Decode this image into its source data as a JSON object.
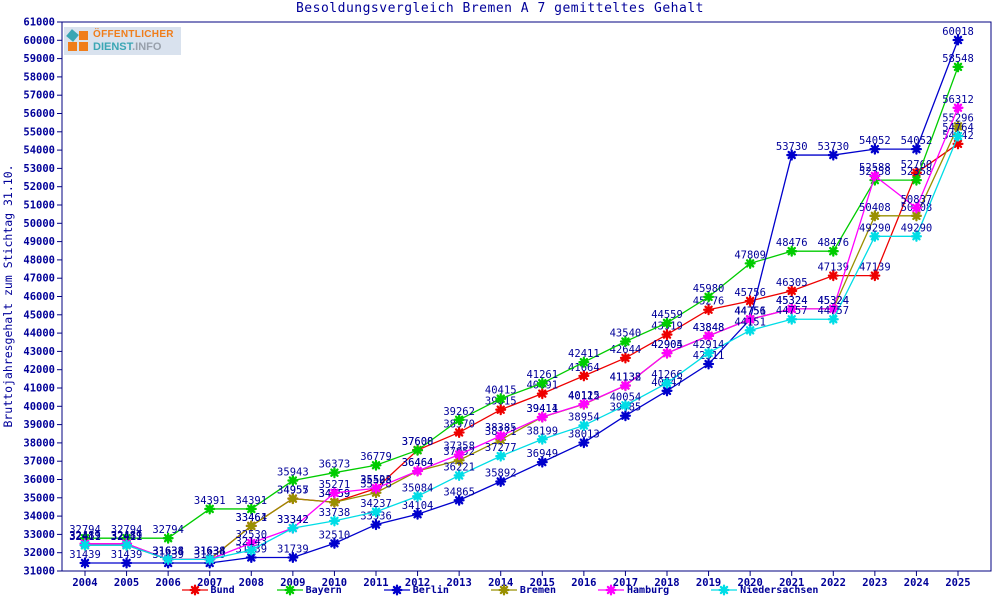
{
  "page": {
    "logo": {
      "line1": "ÖFFENTLICHER",
      "line2a": "DIENST",
      "line2b": ".INFO"
    }
  },
  "colors": {
    "axis": "#000080",
    "label_text": "#000099",
    "logo_orange": "#f07d1a",
    "logo_teal": "#3aa6b4",
    "logo_gray": "#98a0ab"
  },
  "chart_data": {
    "type": "line",
    "title": "Besoldungsvergleich Bremen A 7 gemitteltes Gehalt",
    "xlabel": "",
    "ylabel": "Bruttojahresgehalt zum Stichtag 31.10.",
    "ylim": [
      31000,
      61000
    ],
    "ytick_step": 1000,
    "grid": false,
    "legend_position": "bottom",
    "marker": "star",
    "point_labels": true,
    "x": [
      2004,
      2005,
      2006,
      2007,
      2008,
      2009,
      2010,
      2011,
      2012,
      2013,
      2014,
      2015,
      2016,
      2017,
      2018,
      2019,
      2020,
      2021,
      2022,
      2023,
      2024,
      2025
    ],
    "series": [
      {
        "name": "Bund",
        "color": "#ee0000",
        "values": [
          32489,
          32489,
          31638,
          31638,
          33464,
          34957,
          34759,
          35508,
          37608,
          38570,
          39815,
          40691,
          41664,
          42644,
          43919,
          45276,
          45756,
          46305,
          47139,
          47139,
          52760,
          54342
        ]
      },
      {
        "name": "Bayern",
        "color": "#00cc00",
        "values": [
          32794,
          32794,
          32794,
          34391,
          34391,
          35943,
          36373,
          36779,
          37600,
          39262,
          40415,
          41261,
          42411,
          43540,
          44559,
          45980,
          47809,
          48476,
          48476,
          52358,
          52358,
          58548
        ]
      },
      {
        "name": "Berlin",
        "color": "#0000cc",
        "values": [
          31439,
          31439,
          31439,
          31439,
          31739,
          31739,
          32510,
          33536,
          34104,
          34865,
          35892,
          36949,
          38013,
          39485,
          40847,
          42311,
          44751,
          53730,
          53730,
          54052,
          54052,
          60018
        ]
      },
      {
        "name": "Bremen",
        "color": "#999000",
        "values": [
          32411,
          32411,
          31634,
          31634,
          33461,
          34955,
          34759,
          35278,
          36464,
          37052,
          38171,
          39411,
          40112,
          41132,
          42904,
          43848,
          44756,
          45324,
          45324,
          50408,
          50408,
          55296
        ]
      },
      {
        "name": "Hamburg",
        "color": "#ff00ff",
        "values": [
          32489,
          32489,
          31638,
          31638,
          32530,
          33342,
          35271,
          35523,
          36464,
          37358,
          38385,
          39414,
          40125,
          41138,
          42905,
          43848,
          44756,
          45324,
          45324,
          52588,
          50837,
          56312
        ]
      },
      {
        "name": "Niedersachsen",
        "color": "#00dde6",
        "values": [
          32411,
          32411,
          31634,
          31634,
          32143,
          33342,
          33738,
          34237,
          35084,
          36221,
          37277,
          38199,
          38954,
          40054,
          41266,
          42914,
          44151,
          44757,
          44757,
          49290,
          49290,
          54764
        ]
      }
    ]
  }
}
